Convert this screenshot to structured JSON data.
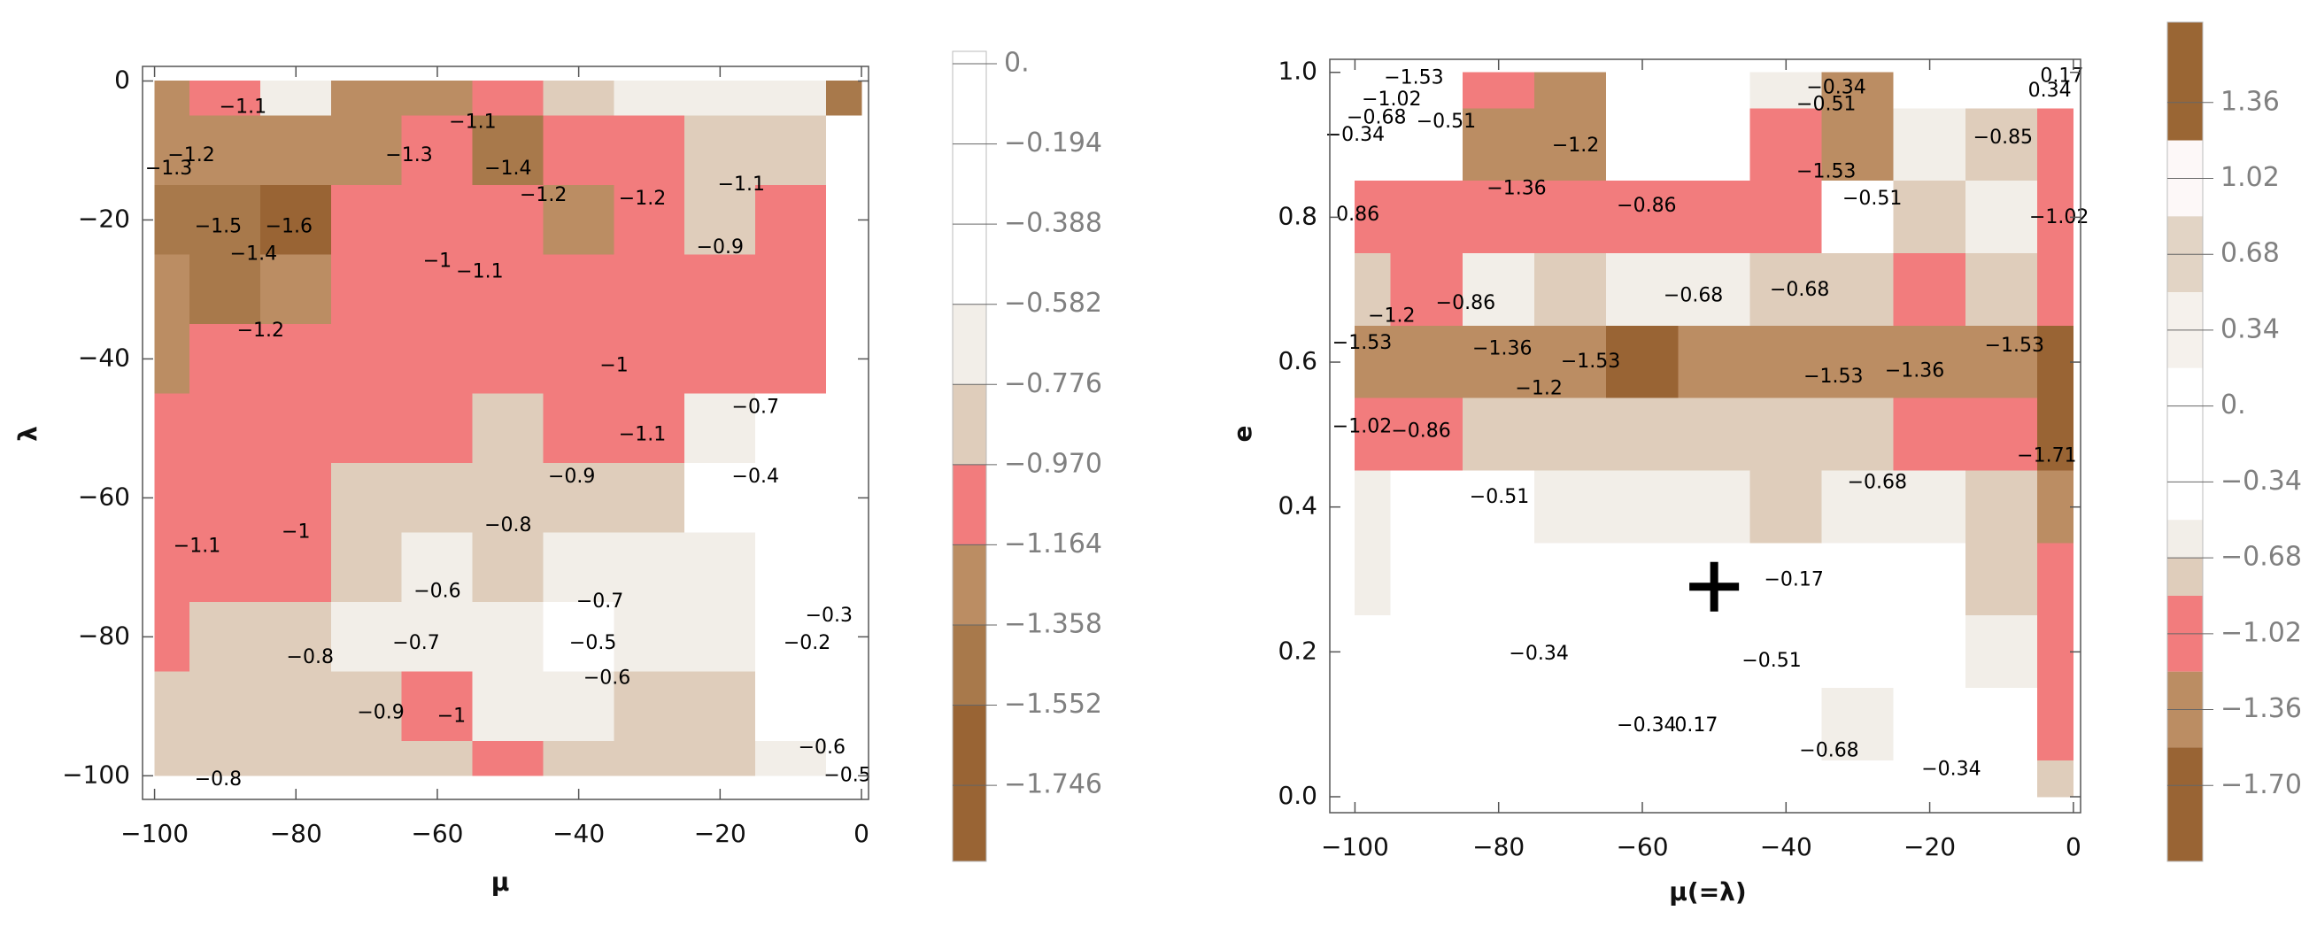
{
  "chart_data": [
    {
      "type": "contour",
      "x_label": "μ",
      "y_label": "λ",
      "x": [
        -100,
        -90,
        -80,
        -70,
        -60,
        -50,
        -40,
        -30,
        -20,
        -10,
        0
      ],
      "y": [
        0,
        -10,
        -20,
        -30,
        -40,
        -50,
        -60,
        -70,
        -80,
        -90,
        -100
      ],
      "z": [
        [
          -1.3,
          -1.1,
          -0.6,
          -1.3,
          -1.3,
          -1.1,
          -0.8,
          -0.7,
          -0.6,
          -0.6,
          -1.5
        ],
        [
          -1.3,
          -1.2,
          -1.3,
          -1.3,
          -1.1,
          -1.4,
          -1.1,
          -1.1,
          -0.9,
          -0.8,
          -0.3
        ],
        [
          -1.4,
          -1.5,
          -1.6,
          -1.1,
          -1.0,
          -1.1,
          -1.2,
          -1.1,
          -0.9,
          -1.0,
          -0.2
        ],
        [
          -1.3,
          -1.4,
          -1.3,
          -1.1,
          -1.0,
          -1.1,
          -1.1,
          -1.0,
          -1.0,
          -1.0,
          -0.2
        ],
        [
          -1.2,
          -1.1,
          -1.1,
          -1.0,
          -1.1,
          -1.0,
          -1.0,
          -1.0,
          -1.1,
          -1.1,
          -0.2
        ],
        [
          -1.0,
          -1.1,
          -1.0,
          -1.0,
          -1.0,
          -0.9,
          -1.0,
          -1.1,
          -0.7,
          -0.4,
          -0.1
        ],
        [
          -1.1,
          -1.0,
          -1.0,
          -0.8,
          -0.8,
          -0.9,
          -0.8,
          -0.8,
          -0.5,
          -0.2,
          -0.1
        ],
        [
          -1.1,
          -1.0,
          -1.0,
          -0.8,
          -0.6,
          -0.8,
          -0.7,
          -0.7,
          -0.6,
          -0.3,
          -0.2
        ],
        [
          -1.0,
          -0.9,
          -0.8,
          -0.7,
          -0.6,
          -0.7,
          -0.5,
          -0.7,
          -0.7,
          -0.3,
          -0.2
        ],
        [
          -0.8,
          -0.8,
          -0.8,
          -0.9,
          -1.0,
          -0.7,
          -0.6,
          -0.8,
          -0.8,
          -0.5,
          -0.4
        ],
        [
          -0.8,
          -0.8,
          -0.8,
          -0.8,
          -0.8,
          -1.0,
          -0.8,
          -0.8,
          -0.8,
          -0.6,
          -0.5
        ]
      ],
      "xlim": [
        -101.7,
        1.0
      ],
      "ylim": [
        -103.4,
        2.1
      ],
      "xticks": [
        {
          "value": -100,
          "label": "−100"
        },
        {
          "value": -80,
          "label": "−80"
        },
        {
          "value": -60,
          "label": "−60"
        },
        {
          "value": -40,
          "label": "−40"
        },
        {
          "value": -20,
          "label": "−20"
        },
        0
      ],
      "yticks": [
        {
          "value": -100,
          "label": "−100"
        },
        {
          "value": -80,
          "label": "−80"
        },
        {
          "value": -60,
          "label": "−60"
        },
        {
          "value": -40,
          "label": "−40"
        },
        {
          "value": -20,
          "label": "−20"
        },
        0
      ],
      "zlim": [
        -1.93,
        0.03
      ],
      "zticks": [
        {
          "value": 0,
          "label": "0."
        },
        {
          "value": -0.194,
          "label": "−0.194"
        },
        {
          "value": -0.388,
          "label": "−0.388"
        },
        {
          "value": -0.582,
          "label": "−0.582"
        },
        {
          "value": -0.776,
          "label": "−0.776"
        },
        {
          "value": -0.97,
          "label": "−0.970"
        },
        {
          "value": -1.164,
          "label": "−1.164"
        },
        {
          "value": -1.358,
          "label": "−1.358"
        },
        {
          "value": -1.552,
          "label": "−1.552"
        },
        {
          "value": -1.746,
          "label": "−1.746"
        }
      ],
      "bands": [
        {
          "min": -0.582,
          "max": 0.03,
          "color": "#ffffff"
        },
        {
          "min": -0.776,
          "max": -0.582,
          "color": "#f2eee8"
        },
        {
          "min": -0.97,
          "max": -0.776,
          "color": "#dfcdbb"
        },
        {
          "min": -1.164,
          "max": -0.97,
          "color": "#f27c7d"
        },
        {
          "min": -1.358,
          "max": -1.164,
          "color": "#bb8d63"
        },
        {
          "min": -1.552,
          "max": -1.358,
          "color": "#a8794b"
        },
        {
          "min": -1.93,
          "max": -1.552,
          "color": "#996434"
        }
      ],
      "contour_labels": [
        {
          "label": "−1.1",
          "x": -87.5,
          "y": -3.8
        },
        {
          "label": "−1.2",
          "x": -94.8,
          "y": -10.8
        },
        {
          "label": "−1.3",
          "x": -98,
          "y": -12.7
        },
        {
          "label": "−1.5",
          "x": -91,
          "y": -21
        },
        {
          "label": "−1.6",
          "x": -81,
          "y": -21
        },
        {
          "label": "−1.4",
          "x": -86,
          "y": -25
        },
        {
          "label": "−1.2",
          "x": -85,
          "y": -36
        },
        {
          "label": "−1.3",
          "x": -64,
          "y": -10.8
        },
        {
          "label": "−1.1",
          "x": -55,
          "y": -6
        },
        {
          "label": "−1.4",
          "x": -50,
          "y": -12.7
        },
        {
          "label": "−1.2",
          "x": -45,
          "y": -16.5
        },
        {
          "label": "−1.2",
          "x": -31,
          "y": -17
        },
        {
          "label": "−1.1",
          "x": -17,
          "y": -15
        },
        {
          "label": "−0.9",
          "x": -20,
          "y": -24
        },
        {
          "label": "−1",
          "x": -60,
          "y": -26
        },
        {
          "label": "−1.1",
          "x": -54,
          "y": -27.5
        },
        {
          "label": "−1",
          "x": -35,
          "y": -41
        },
        {
          "label": "−1.1",
          "x": -31,
          "y": -51
        },
        {
          "label": "−0.7",
          "x": -15,
          "y": -47
        },
        {
          "label": "−0.4",
          "x": -15,
          "y": -57
        },
        {
          "label": "−0.9",
          "x": -41,
          "y": -57
        },
        {
          "label": "−0.8",
          "x": -50,
          "y": -64
        },
        {
          "label": "−1",
          "x": -80,
          "y": -65
        },
        {
          "label": "−1.1",
          "x": -94,
          "y": -67
        },
        {
          "label": "−0.6",
          "x": -60,
          "y": -73.5
        },
        {
          "label": "−0.7",
          "x": -37,
          "y": -75
        },
        {
          "label": "−0.5",
          "x": -38,
          "y": -81
        },
        {
          "label": "−0.6",
          "x": -36,
          "y": -86
        },
        {
          "label": "−0.7",
          "x": -63,
          "y": -81
        },
        {
          "label": "−0.8",
          "x": -78,
          "y": -83
        },
        {
          "label": "−0.9",
          "x": -68,
          "y": -91
        },
        {
          "label": "−1",
          "x": -58,
          "y": -91.5
        },
        {
          "label": "−0.8",
          "x": -91,
          "y": -100.6
        },
        {
          "label": "−0.3",
          "x": -4.6,
          "y": -77
        },
        {
          "label": "−0.2",
          "x": -7.7,
          "y": -81
        },
        {
          "label": "−0.6",
          "x": -5.6,
          "y": -96
        },
        {
          "label": "−0.5",
          "x": -2,
          "y": -100
        }
      ]
    },
    {
      "type": "contour",
      "x_label": "μ(=λ)",
      "y_label": "e",
      "x": [
        -100,
        -90,
        -80,
        -70,
        -60,
        -50,
        -40,
        -30,
        -20,
        -10,
        0
      ],
      "y": [
        1.0,
        0.9,
        0.8,
        0.7,
        0.6,
        0.5,
        0.4,
        0.3,
        0.2,
        0.1,
        0.0
      ],
      "z": [
        [
          -0.5,
          -0.5,
          -1.1,
          -1.3,
          -0.3,
          -0.3,
          -0.6,
          -1.4,
          -0.5,
          -0.3,
          -0.2
        ],
        [
          -0.4,
          -0.5,
          -1.4,
          -1.3,
          -0.2,
          -0.2,
          -1.0,
          -1.5,
          -0.6,
          -0.7,
          -1.0
        ],
        [
          -0.9,
          -0.9,
          -1.0,
          -1.0,
          -0.9,
          -0.9,
          -1.0,
          -0.5,
          -0.7,
          -0.6,
          -1.0
        ],
        [
          -0.8,
          -0.9,
          -0.6,
          -0.8,
          -0.6,
          -0.6,
          -0.7,
          -0.8,
          -0.9,
          -0.7,
          -1.0
        ],
        [
          -1.5,
          -1.4,
          -1.4,
          -1.3,
          -1.6,
          -1.3,
          -1.5,
          -1.4,
          -1.3,
          -1.4,
          -1.6
        ],
        [
          -1.0,
          -0.9,
          -0.8,
          -0.8,
          -0.8,
          -0.8,
          -0.8,
          -0.8,
          -0.9,
          -1.0,
          -1.7
        ],
        [
          -0.6,
          -0.5,
          -0.5,
          -0.6,
          -0.6,
          -0.6,
          -0.7,
          -0.6,
          -0.6,
          -0.8,
          -1.4
        ],
        [
          -0.6,
          -0.3,
          -0.4,
          -0.2,
          -0.3,
          -0.2,
          -0.2,
          -0.4,
          -0.5,
          -0.7,
          -1.1
        ],
        [
          -0.5,
          -0.3,
          -0.3,
          -0.3,
          -0.2,
          -0.2,
          -0.5,
          -0.5,
          -0.4,
          -0.6,
          -1.0
        ],
        [
          -0.4,
          -0.3,
          -0.3,
          -0.4,
          -0.3,
          -0.4,
          -0.4,
          -0.6,
          -0.4,
          -0.5,
          -0.9
        ],
        [
          -0.3,
          -0.3,
          -0.3,
          -0.3,
          -0.3,
          -0.3,
          -0.3,
          -0.4,
          -0.3,
          -0.3,
          -0.8
        ]
      ],
      "xlim": [
        -103.5,
        1.0
      ],
      "ylim": [
        -0.022,
        1.018
      ],
      "xticks": [
        {
          "value": -100,
          "label": "−100"
        },
        {
          "value": -80,
          "label": "−80"
        },
        {
          "value": -60,
          "label": "−60"
        },
        {
          "value": -40,
          "label": "−40"
        },
        {
          "value": -20,
          "label": "−20"
        },
        0
      ],
      "yticks": [
        {
          "value": 0,
          "label": "0.0"
        },
        0.2,
        0.4,
        0.6,
        0.8,
        {
          "value": 1,
          "label": "1.0"
        }
      ],
      "zlim": [
        -2.04,
        1.72
      ],
      "zticks": [
        1.36,
        1.02,
        0.68,
        0.34,
        {
          "value": 0,
          "label": "0."
        },
        {
          "value": -0.34,
          "label": "−0.34"
        },
        {
          "value": -0.68,
          "label": "−0.68"
        },
        {
          "value": -1.02,
          "label": "−1.02"
        },
        {
          "value": -1.36,
          "label": "−1.36"
        },
        {
          "value": -1.7,
          "label": "−1.70"
        }
      ],
      "bands": [
        {
          "min": 1.19,
          "max": 1.72,
          "color": "#9a6634"
        },
        {
          "min": 0.85,
          "max": 1.19,
          "color": "#fdf8f8"
        },
        {
          "min": 0.51,
          "max": 0.85,
          "color": "#e2d4c5"
        },
        {
          "min": 0.17,
          "max": 0.51,
          "color": "#f5f1ec"
        },
        {
          "min": -0.51,
          "max": 0.17,
          "color": "#ffffff"
        },
        {
          "min": -0.68,
          "max": -0.51,
          "color": "#f2eee8"
        },
        {
          "min": -0.85,
          "max": -0.68,
          "color": "#dfcdbb"
        },
        {
          "min": -1.19,
          "max": -0.85,
          "color": "#f27c7d"
        },
        {
          "min": -1.53,
          "max": -1.19,
          "color": "#bb8d63"
        },
        {
          "min": -2.04,
          "max": -1.53,
          "color": "#996434"
        }
      ],
      "contour_labels": [
        {
          "label": "−1.53",
          "x": -91.8,
          "y": 0.992
        },
        {
          "label": "−1.02",
          "x": -94.9,
          "y": 0.962
        },
        {
          "label": "−0.68",
          "x": -97,
          "y": 0.937
        },
        {
          "label": "−0.34",
          "x": -100,
          "y": 0.913
        },
        {
          "label": "−0.51",
          "x": -87.3,
          "y": 0.931
        },
        {
          "label": "−1.2",
          "x": -69.3,
          "y": 0.898
        },
        {
          "label": "−1.36",
          "x": -77.5,
          "y": 0.839
        },
        {
          "label": "0.86",
          "x": -99.6,
          "y": 0.803
        },
        {
          "label": "−0.86",
          "x": -59.4,
          "y": 0.815
        },
        {
          "label": "−0.34",
          "x": -33,
          "y": 0.978
        },
        {
          "label": "−0.51",
          "x": -34.4,
          "y": 0.955
        },
        {
          "label": "−1.53",
          "x": -34.4,
          "y": 0.862
        },
        {
          "label": "−0.51",
          "x": -28,
          "y": 0.825
        },
        {
          "label": "−0.85",
          "x": -9.8,
          "y": 0.909
        },
        {
          "label": "−1.02",
          "x": -2,
          "y": 0.799
        },
        {
          "label": "0.17",
          "x": -1.6,
          "y": 0.994
        },
        {
          "label": "0.34",
          "x": -3.3,
          "y": 0.974
        },
        {
          "label": "−0.86",
          "x": -84.6,
          "y": 0.681
        },
        {
          "label": "−0.68",
          "x": -52.9,
          "y": 0.691
        },
        {
          "label": "−0.68",
          "x": -38.1,
          "y": 0.699
        },
        {
          "label": "−1.2",
          "x": -94.9,
          "y": 0.663
        },
        {
          "label": "−1.53",
          "x": -99,
          "y": 0.626
        },
        {
          "label": "−1.36",
          "x": -79.5,
          "y": 0.618
        },
        {
          "label": "−1.53",
          "x": -67.2,
          "y": 0.6
        },
        {
          "label": "−1.2",
          "x": -74.4,
          "y": 0.563
        },
        {
          "label": "−1.53",
          "x": -33.4,
          "y": 0.579
        },
        {
          "label": "−1.36",
          "x": -22.1,
          "y": 0.587
        },
        {
          "label": "−1.53",
          "x": -8.2,
          "y": 0.622
        },
        {
          "label": "−1.02",
          "x": -99,
          "y": 0.51
        },
        {
          "label": "−0.86",
          "x": -90.8,
          "y": 0.504
        },
        {
          "label": "−1.71",
          "x": -3.7,
          "y": 0.47
        },
        {
          "label": "−0.68",
          "x": -27.3,
          "y": 0.433
        },
        {
          "label": "−0.51",
          "x": -79.9,
          "y": 0.413
        },
        {
          "label": "−0.17",
          "x": -38.9,
          "y": 0.299
        },
        {
          "label": "−0.34",
          "x": -74.4,
          "y": 0.197
        },
        {
          "label": "−0.51",
          "x": -42,
          "y": 0.187
        },
        {
          "label": "−0.34",
          "x": -59.4,
          "y": 0.098
        },
        {
          "label": "0.17",
          "x": -52.5,
          "y": 0.098
        },
        {
          "label": "−0.68",
          "x": -34,
          "y": 0.063
        },
        {
          "label": "−0.34",
          "x": -17,
          "y": 0.037
        }
      ],
      "marker": {
        "x": -50,
        "y": 0.29
      }
    }
  ]
}
